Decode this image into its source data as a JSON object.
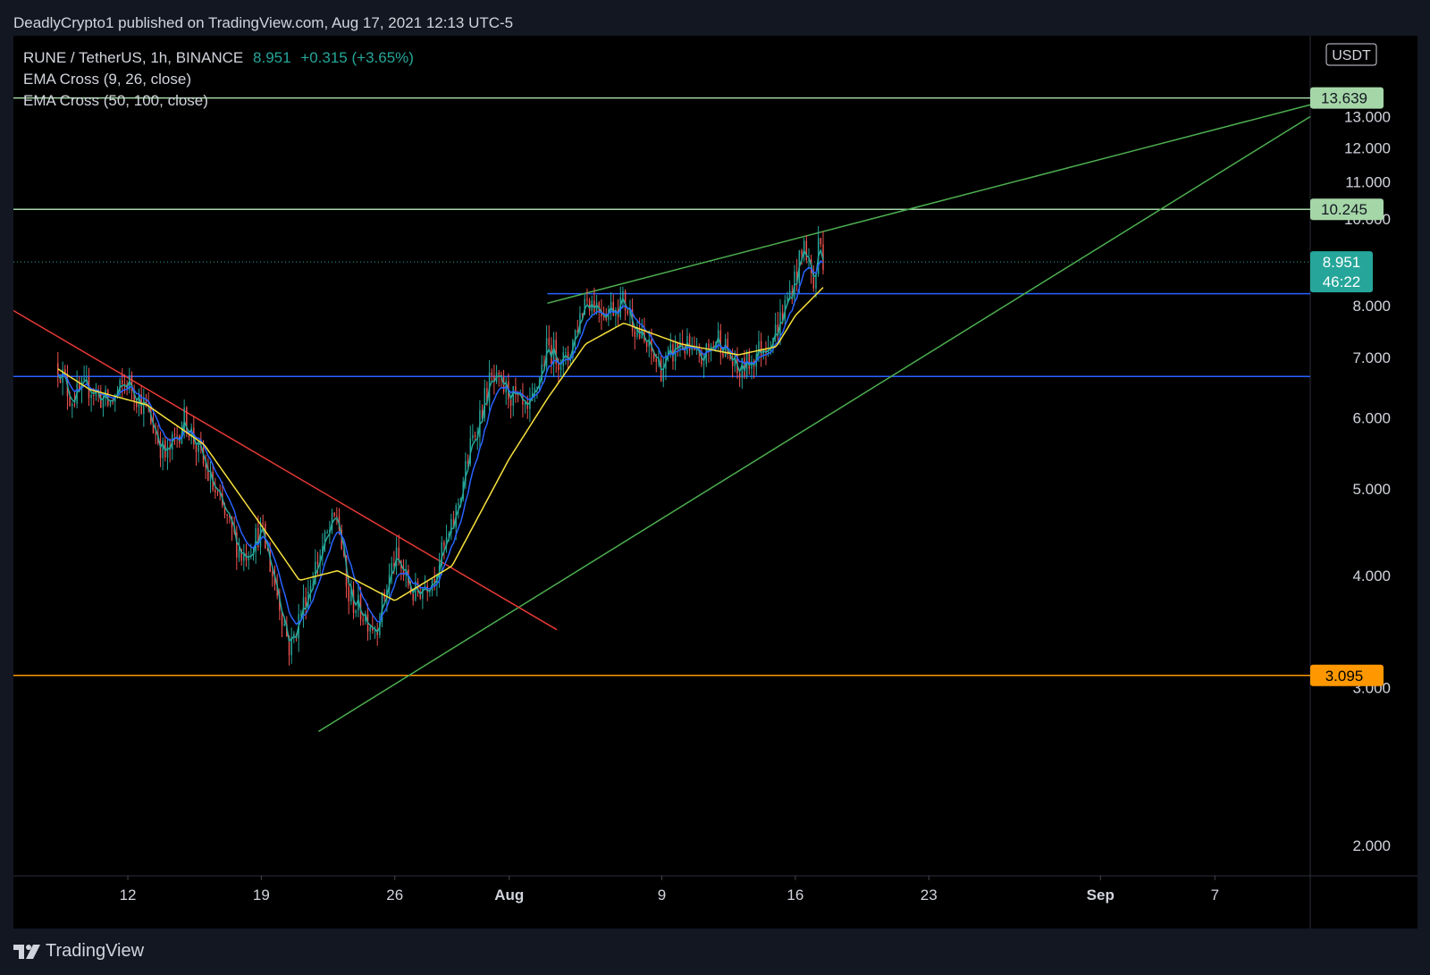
{
  "header": {
    "published": "DeadlyCrypto1 published on TradingView.com, Aug 17, 2021 12:13 UTC-5"
  },
  "legend": {
    "symbol": "RUNE / TetherUS, 1h, BINANCE",
    "price": "8.951",
    "change": "+0.315 (+3.65%)",
    "indicator1": "EMA Cross (9, 26, close)",
    "indicator2": "EMA Cross (50, 100, close)"
  },
  "footer": {
    "brand": "TradingView"
  },
  "colors": {
    "background": "#000000",
    "frame": "#131722",
    "text": "#d1d4dc",
    "up": "#26a69a",
    "down": "#ef5350",
    "ema9": "#26a69a",
    "ema26": "#2962ff",
    "ema50": "#f7e13d",
    "resistance": "#a5d6a7",
    "support": "#2962ff",
    "trend": "#4caf50",
    "downtrend": "#e53935",
    "bottom": "#ff9800"
  },
  "chart_data": {
    "type": "candlestick",
    "symbol": "RUNE / TetherUS",
    "timeframe": "1h",
    "exchange": "BINANCE",
    "currency": "USDT",
    "y_scale": "log",
    "ylim": [
      1.85,
      16.0
    ],
    "xlim": [
      "2021-07-06",
      "2021-09-12"
    ],
    "y_ticks": [
      "2.000",
      "3.000",
      "4.000",
      "5.000",
      "6.000",
      "7.000",
      "8.000",
      "10.000",
      "11.000",
      "12.000",
      "13.000"
    ],
    "x_ticks": [
      {
        "label": "12",
        "date": "2021-07-12",
        "bold": false
      },
      {
        "label": "19",
        "date": "2021-07-19",
        "bold": false
      },
      {
        "label": "26",
        "date": "2021-07-26",
        "bold": false
      },
      {
        "label": "Aug",
        "date": "2021-08-01",
        "bold": true
      },
      {
        "label": "9",
        "date": "2021-08-09",
        "bold": false
      },
      {
        "label": "16",
        "date": "2021-08-16",
        "bold": false
      },
      {
        "label": "23",
        "date": "2021-08-23",
        "bold": false
      },
      {
        "label": "Sep",
        "date": "2021-09-01",
        "bold": true
      },
      {
        "label": "7",
        "date": "2021-09-07",
        "bold": false
      }
    ],
    "price_path": [
      [
        "2021-07-08 08:00",
        6.9
      ],
      [
        "2021-07-09 00:00",
        6.3
      ],
      [
        "2021-07-10 00:00",
        6.5
      ],
      [
        "2021-07-11 00:00",
        6.2
      ],
      [
        "2021-07-12 00:00",
        6.6
      ],
      [
        "2021-07-13 00:00",
        6.1
      ],
      [
        "2021-07-14 00:00",
        5.4
      ],
      [
        "2021-07-15 00:00",
        6.0
      ],
      [
        "2021-07-16 00:00",
        5.3
      ],
      [
        "2021-07-17 00:00",
        4.7
      ],
      [
        "2021-07-18 00:00",
        4.2
      ],
      [
        "2021-07-19 00:00",
        4.5
      ],
      [
        "2021-07-20 00:00",
        3.7
      ],
      [
        "2021-07-20 12:00",
        3.3
      ],
      [
        "2021-07-21 00:00",
        3.6
      ],
      [
        "2021-07-22 00:00",
        4.2
      ],
      [
        "2021-07-23 00:00",
        4.7
      ],
      [
        "2021-07-23 12:00",
        3.8
      ],
      [
        "2021-07-24 00:00",
        3.7
      ],
      [
        "2021-07-25 00:00",
        3.5
      ],
      [
        "2021-07-26 00:00",
        4.2
      ],
      [
        "2021-07-27 00:00",
        3.8
      ],
      [
        "2021-07-28 00:00",
        4.0
      ],
      [
        "2021-07-29 00:00",
        4.5
      ],
      [
        "2021-07-30 00:00",
        5.6
      ],
      [
        "2021-07-31 00:00",
        6.6
      ],
      [
        "2021-08-01 00:00",
        6.4
      ],
      [
        "2021-08-02 00:00",
        6.0
      ],
      [
        "2021-08-03 00:00",
        7.2
      ],
      [
        "2021-08-04 00:00",
        6.9
      ],
      [
        "2021-08-05 00:00",
        8.2
      ],
      [
        "2021-08-06 00:00",
        7.9
      ],
      [
        "2021-08-07 00:00",
        8.1
      ],
      [
        "2021-08-08 00:00",
        7.3
      ],
      [
        "2021-08-09 00:00",
        6.8
      ],
      [
        "2021-08-10 00:00",
        7.3
      ],
      [
        "2021-08-11 00:00",
        6.9
      ],
      [
        "2021-08-12 00:00",
        7.4
      ],
      [
        "2021-08-13 00:00",
        6.7
      ],
      [
        "2021-08-14 00:00",
        7.1
      ],
      [
        "2021-08-15 00:00",
        7.5
      ],
      [
        "2021-08-16 00:00",
        8.6
      ],
      [
        "2021-08-16 12:00",
        9.4
      ],
      [
        "2021-08-17 00:00",
        8.3
      ],
      [
        "2021-08-17 06:00",
        9.6
      ],
      [
        "2021-08-17 12:00",
        8.95
      ]
    ],
    "ema50_path": [
      [
        "2021-07-08 08:00",
        6.8
      ],
      [
        "2021-07-10 00:00",
        6.45
      ],
      [
        "2021-07-13 00:00",
        6.2
      ],
      [
        "2021-07-16 00:00",
        5.6
      ],
      [
        "2021-07-19 00:00",
        4.55
      ],
      [
        "2021-07-21 00:00",
        3.95
      ],
      [
        "2021-07-23 00:00",
        4.05
      ],
      [
        "2021-07-26 00:00",
        3.75
      ],
      [
        "2021-07-29 00:00",
        4.1
      ],
      [
        "2021-08-01 00:00",
        5.4
      ],
      [
        "2021-08-03 00:00",
        6.3
      ],
      [
        "2021-08-05 00:00",
        7.25
      ],
      [
        "2021-08-07 00:00",
        7.65
      ],
      [
        "2021-08-10 00:00",
        7.25
      ],
      [
        "2021-08-13 00:00",
        7.05
      ],
      [
        "2021-08-15 00:00",
        7.2
      ],
      [
        "2021-08-16 00:00",
        7.8
      ],
      [
        "2021-08-17 12:00",
        8.4
      ]
    ],
    "last_price": 8.951,
    "countdown": "46:22",
    "levels": [
      {
        "kind": "resistance",
        "price": 13.639,
        "label": "13.639",
        "colorKey": "resistance"
      },
      {
        "kind": "resistance",
        "price": 10.245,
        "label": "10.245",
        "colorKey": "resistance"
      },
      {
        "kind": "support",
        "price": 8.25,
        "from": "2021-08-03",
        "colorKey": "support"
      },
      {
        "kind": "support",
        "price": 6.67,
        "from": "2021-07-06",
        "colorKey": "support"
      },
      {
        "kind": "support",
        "price": 3.095,
        "label": "3.095",
        "colorKey": "bottom"
      }
    ],
    "trendlines": [
      {
        "name": "upper-wedge",
        "colorKey": "trend",
        "from": [
          "2021-08-03 00:00",
          8.05
        ],
        "to": [
          "2021-09-12 00:00",
          13.4
        ]
      },
      {
        "name": "lower-wedge",
        "colorKey": "trend",
        "from": [
          "2021-07-22 00:00",
          2.68
        ],
        "to": [
          "2021-09-12 00:00",
          13.0
        ]
      },
      {
        "name": "downtrend",
        "colorKey": "downtrend",
        "from": [
          "2021-07-06 00:00",
          7.9
        ],
        "to": [
          "2021-08-03 12:00",
          3.48
        ]
      }
    ]
  }
}
